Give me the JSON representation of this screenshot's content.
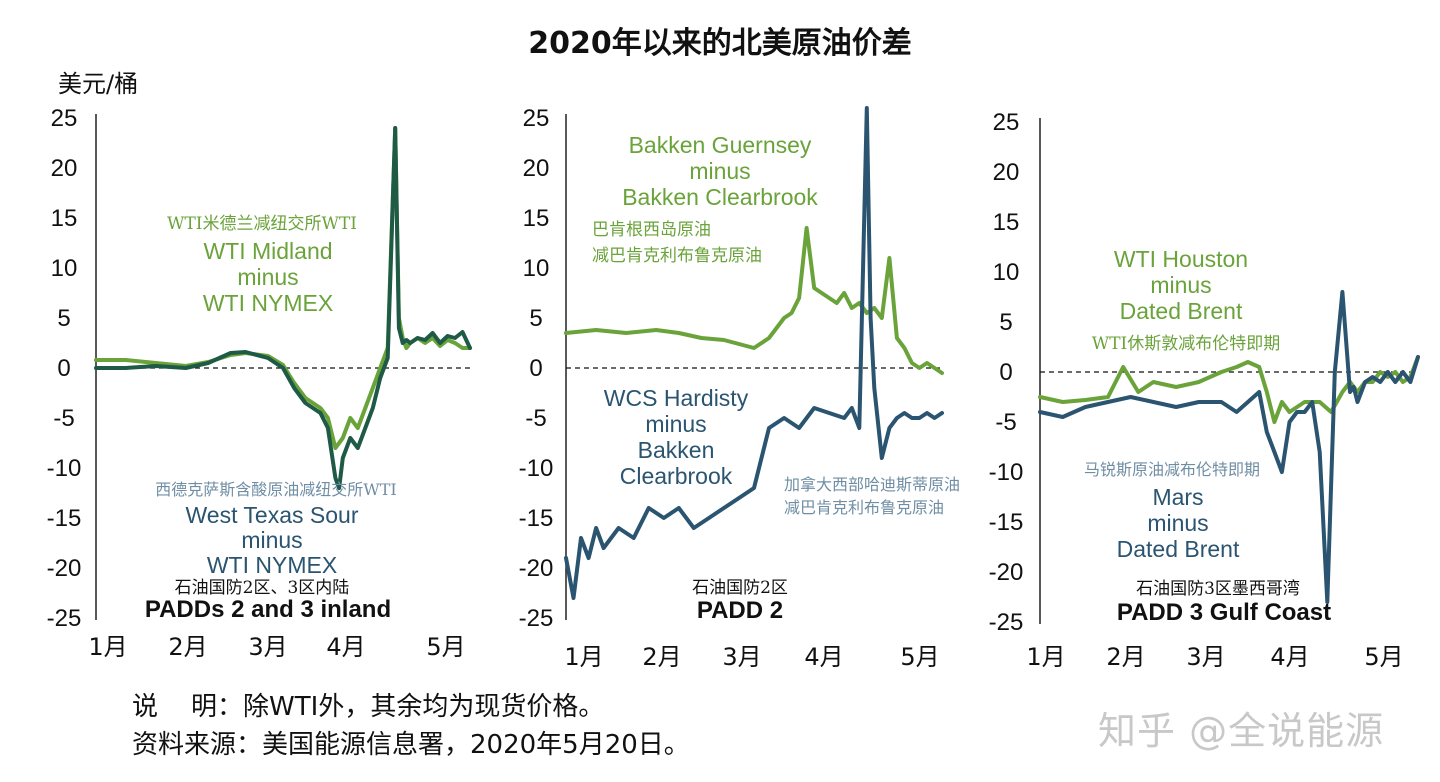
{
  "title": "2020年以来的北美原油价差",
  "unit": "美元/桶",
  "notes": {
    "row1": "说    明：除WTI外，其余均为现货价格。",
    "row2": "资料来源：美国能源信息署，2020年5月20日。"
  },
  "watermark": "知乎 @全说能源",
  "colors": {
    "green": "#6aa33a",
    "blue": "#2a5470",
    "dark_green": "#1e5a46"
  },
  "chart_data": [
    {
      "type": "line",
      "panel_title_cn": "石油国防2区、3区内陆",
      "panel_title_en": "PADDs 2 and 3 inland",
      "yticks": [
        "25",
        "20",
        "15",
        "10",
        "5",
        "0",
        "-5",
        "-10",
        "-15",
        "-20",
        "-25"
      ],
      "ylim": [
        -25,
        25
      ],
      "xticks": [
        "1月",
        "2月",
        "3月",
        "4月",
        "5月"
      ],
      "annotations": {
        "green_cn": "WTI米德兰减纽交所WTI",
        "green_en": [
          "WTI Midland",
          "minus",
          "WTI NYMEX"
        ],
        "blue_cn": "西德克萨斯含酸原油减纽交所WTI",
        "blue_en": [
          "West Texas Sour",
          "minus",
          "WTI NYMEX"
        ]
      },
      "series": [
        {
          "name": "WTI Midland minus WTI NYMEX",
          "color": "green",
          "x": [
            0,
            0.08,
            0.16,
            0.24,
            0.3,
            0.36,
            0.4,
            0.46,
            0.5,
            0.53,
            0.56,
            0.6,
            0.62,
            0.64,
            0.66,
            0.68,
            0.7,
            0.72,
            0.74,
            0.76,
            0.78,
            0.8,
            0.81,
            0.82,
            0.83,
            0.84,
            0.86,
            0.88,
            0.9,
            0.92,
            0.94,
            0.96,
            0.98,
            1.0
          ],
          "values": [
            0.8,
            0.8,
            0.5,
            0.2,
            0.6,
            1.3,
            1.5,
            1.2,
            0.3,
            -1.5,
            -3,
            -4,
            -5,
            -8,
            -7,
            -5,
            -6,
            -4,
            -2,
            0,
            2,
            24,
            5,
            3,
            2,
            2.5,
            3,
            2.5,
            3,
            2.2,
            2.8,
            2.5,
            2,
            2
          ]
        },
        {
          "name": "West Texas Sour minus WTI NYMEX",
          "color": "dark_green",
          "x": [
            0,
            0.08,
            0.16,
            0.24,
            0.3,
            0.36,
            0.4,
            0.46,
            0.5,
            0.53,
            0.56,
            0.6,
            0.62,
            0.64,
            0.65,
            0.66,
            0.68,
            0.7,
            0.72,
            0.74,
            0.76,
            0.78,
            0.8,
            0.81,
            0.82,
            0.83,
            0.84,
            0.86,
            0.88,
            0.9,
            0.92,
            0.94,
            0.96,
            0.98,
            1.0
          ],
          "values": [
            0,
            0,
            0.2,
            0,
            0.5,
            1.5,
            1.6,
            1.0,
            0,
            -2,
            -3.5,
            -4.5,
            -6,
            -11,
            -12,
            -9,
            -7,
            -8,
            -6,
            -4,
            -1,
            1,
            24,
            4,
            2.5,
            2.8,
            2.5,
            3,
            2.8,
            3.5,
            2.5,
            3.2,
            3,
            3.6,
            2
          ]
        }
      ]
    },
    {
      "type": "line",
      "panel_title_cn": "石油国防2区",
      "panel_title_en": "PADD 2",
      "yticks": [
        "25",
        "20",
        "15",
        "10",
        "5",
        "0",
        "-5",
        "-10",
        "-15",
        "-20",
        "-25"
      ],
      "ylim": [
        -25,
        25
      ],
      "xticks": [
        "1月",
        "2月",
        "3月",
        "4月",
        "5月"
      ],
      "annotations": {
        "green_en": [
          "Bakken Guernsey",
          "minus",
          "Bakken Clearbrook"
        ],
        "green_cn": [
          "巴肯根西岛原油",
          "减巴肯克利布鲁克原油"
        ],
        "blue_en": [
          "WCS Hardisty",
          "minus",
          "Bakken",
          "Clearbrook"
        ],
        "blue_cn": [
          "加拿大西部哈迪斯蒂原油",
          "减巴肯克利布鲁克原油"
        ]
      },
      "series": [
        {
          "name": "Bakken Guernsey minus Bakken Clearbrook",
          "color": "green",
          "x": [
            0,
            0.08,
            0.16,
            0.24,
            0.3,
            0.36,
            0.42,
            0.5,
            0.54,
            0.58,
            0.6,
            0.62,
            0.64,
            0.66,
            0.68,
            0.7,
            0.72,
            0.74,
            0.76,
            0.78,
            0.8,
            0.82,
            0.84,
            0.86,
            0.88,
            0.9,
            0.92,
            0.94,
            0.96,
            0.98,
            1.0
          ],
          "values": [
            3.5,
            3.8,
            3.5,
            3.8,
            3.5,
            3.0,
            2.8,
            2.0,
            3.0,
            5.0,
            5.5,
            7,
            14,
            8,
            7.5,
            7,
            6.5,
            7.5,
            6,
            6.5,
            5.5,
            6,
            5,
            11,
            3,
            2,
            0.5,
            0,
            0.5,
            0,
            -0.5
          ]
        },
        {
          "name": "WCS Hardisty minus Bakken Clearbrook",
          "color": "blue",
          "x": [
            0,
            0.02,
            0.04,
            0.06,
            0.08,
            0.1,
            0.14,
            0.18,
            0.22,
            0.26,
            0.3,
            0.34,
            0.38,
            0.42,
            0.46,
            0.5,
            0.54,
            0.58,
            0.62,
            0.66,
            0.7,
            0.74,
            0.76,
            0.78,
            0.8,
            0.81,
            0.82,
            0.84,
            0.86,
            0.88,
            0.9,
            0.92,
            0.94,
            0.96,
            0.98,
            1.0
          ],
          "values": [
            -19,
            -23,
            -17,
            -19,
            -16,
            -18,
            -16,
            -17,
            -14,
            -15,
            -14,
            -16,
            -15,
            -14,
            -13,
            -12,
            -6,
            -5,
            -6,
            -4,
            -4.5,
            -5,
            -4,
            -6,
            26,
            5,
            -2,
            -9,
            -6,
            -5,
            -4.5,
            -5,
            -5,
            -4.5,
            -5,
            -4.5
          ]
        }
      ]
    },
    {
      "type": "line",
      "panel_title_cn": "石油国防3区墨西哥湾",
      "panel_title_en": "PADD 3 Gulf Coast",
      "yticks": [
        "25",
        "20",
        "15",
        "10",
        "5",
        "0",
        "-5",
        "-10",
        "-15",
        "-20",
        "-25"
      ],
      "ylim": [
        -25,
        25
      ],
      "xticks": [
        "1月",
        "2月",
        "3月",
        "4月",
        "5月"
      ],
      "annotations": {
        "green_en": [
          "WTI Houston",
          "minus",
          "Dated Brent"
        ],
        "green_cn": "WTI休斯敦减布伦特即期",
        "blue_cn": "马锐斯原油减布伦特即期",
        "blue_en": [
          "Mars",
          "minus",
          "Dated Brent"
        ]
      },
      "series": [
        {
          "name": "WTI Houston minus Dated Brent",
          "color": "green",
          "x": [
            0,
            0.06,
            0.12,
            0.18,
            0.22,
            0.26,
            0.3,
            0.36,
            0.42,
            0.48,
            0.52,
            0.55,
            0.58,
            0.6,
            0.62,
            0.64,
            0.66,
            0.7,
            0.74,
            0.77,
            0.8,
            0.82,
            0.84,
            0.86,
            0.88,
            0.9,
            0.92,
            0.94,
            0.96,
            0.98,
            1.0
          ],
          "values": [
            -2.5,
            -3,
            -2.8,
            -2.5,
            0.5,
            -2,
            -1,
            -1.5,
            -1,
            0,
            0.5,
            1,
            0.5,
            -2,
            -5,
            -3,
            -4,
            -3,
            -3,
            -4,
            -2,
            -1,
            -2,
            -1,
            -1,
            0,
            -0.5,
            0,
            -1,
            -0.5,
            1.5
          ]
        },
        {
          "name": "Mars minus Dated Brent",
          "color": "blue",
          "x": [
            0,
            0.06,
            0.12,
            0.18,
            0.24,
            0.3,
            0.36,
            0.42,
            0.48,
            0.52,
            0.55,
            0.58,
            0.6,
            0.62,
            0.64,
            0.66,
            0.68,
            0.7,
            0.72,
            0.74,
            0.76,
            0.78,
            0.8,
            0.82,
            0.83,
            0.84,
            0.86,
            0.88,
            0.9,
            0.92,
            0.94,
            0.96,
            0.98,
            1.0
          ],
          "values": [
            -4,
            -4.5,
            -3.5,
            -3,
            -2.5,
            -3,
            -3.5,
            -3,
            -3,
            -4,
            -3,
            -2,
            -6,
            -8,
            -10,
            -5,
            -4,
            -4,
            -3,
            -8,
            -23,
            0,
            8,
            -2,
            -1.5,
            -3,
            -1,
            -0.5,
            -1,
            0,
            -1,
            0,
            -1,
            1.5
          ]
        }
      ]
    }
  ]
}
